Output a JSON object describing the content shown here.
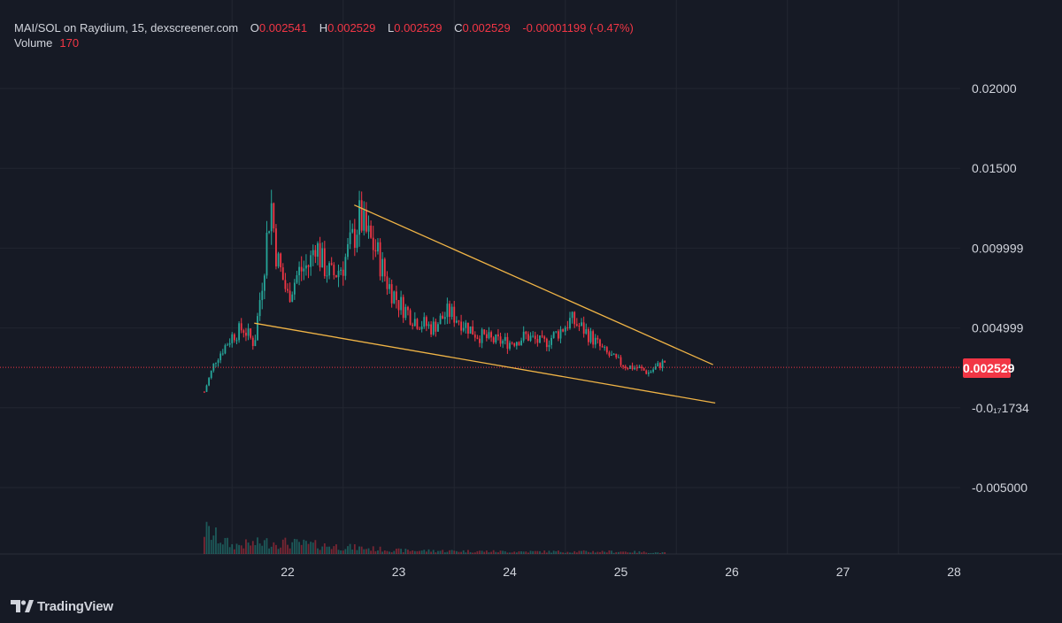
{
  "header": {
    "symbol_text": "MAI/SOL on Raydium, 15, dexscreener.com",
    "open_label": "O",
    "open": "0.002541",
    "high_label": "H",
    "high": "0.002529",
    "low_label": "L",
    "low": "0.002529",
    "close_label": "C",
    "close": "0.002529",
    "change": "-0.00001199 (-0.47%)",
    "volume_label": "Volume",
    "volume": "170"
  },
  "current_price": "0.002529",
  "brand": {
    "name": "TradingView"
  },
  "colors": {
    "background": "#161a25",
    "up": "#26a69a",
    "down": "#f23645",
    "trendline": "#f0b446",
    "grid": "#222631"
  },
  "chart_data": {
    "type": "candlestick",
    "title": "",
    "xlabel": "",
    "ylabel": "",
    "x_ticks": [
      "22",
      "23",
      "24",
      "25",
      "26",
      "27",
      "28"
    ],
    "y_ticks": [
      "0.02000",
      "0.01500",
      "0.009999",
      "0.004999",
      "-0.0₁₇1734",
      "-0.005000"
    ],
    "ylim": [
      -0.0062,
      0.0238
    ],
    "xlim": [
      21.0,
      28.1
    ],
    "grid": true,
    "current_price": 0.002529,
    "price_points": [
      [
        21.25,
        0.001
      ],
      [
        21.35,
        0.003
      ],
      [
        21.5,
        0.0045
      ],
      [
        21.6,
        0.005
      ],
      [
        21.7,
        0.004
      ],
      [
        21.78,
        0.0085
      ],
      [
        21.85,
        0.013
      ],
      [
        21.9,
        0.0095
      ],
      [
        22.0,
        0.007
      ],
      [
        22.1,
        0.0085
      ],
      [
        22.2,
        0.009
      ],
      [
        22.25,
        0.0105
      ],
      [
        22.3,
        0.0092
      ],
      [
        22.4,
        0.0082
      ],
      [
        22.5,
        0.009
      ],
      [
        22.6,
        0.0108
      ],
      [
        22.65,
        0.012
      ],
      [
        22.7,
        0.011
      ],
      [
        22.8,
        0.0098
      ],
      [
        22.9,
        0.0078
      ],
      [
        23.0,
        0.0066
      ],
      [
        23.15,
        0.0055
      ],
      [
        23.3,
        0.005
      ],
      [
        23.45,
        0.006
      ],
      [
        23.55,
        0.0055
      ],
      [
        23.7,
        0.0046
      ],
      [
        23.85,
        0.0042
      ],
      [
        24.0,
        0.0041
      ],
      [
        24.15,
        0.0045
      ],
      [
        24.3,
        0.004
      ],
      [
        24.45,
        0.0048
      ],
      [
        24.55,
        0.0055
      ],
      [
        24.65,
        0.005
      ],
      [
        24.75,
        0.0043
      ],
      [
        24.85,
        0.0035
      ],
      [
        24.95,
        0.003
      ],
      [
        25.05,
        0.0026
      ],
      [
        25.15,
        0.0025
      ],
      [
        25.25,
        0.0022
      ],
      [
        25.35,
        0.0027
      ],
      [
        25.4,
        0.0029
      ]
    ],
    "volume_points": [
      [
        21.25,
        1.0
      ],
      [
        21.5,
        0.35
      ],
      [
        21.85,
        0.5
      ],
      [
        22.5,
        0.3
      ],
      [
        23.0,
        0.15
      ],
      [
        24.0,
        0.1
      ],
      [
        25.0,
        0.1
      ],
      [
        25.4,
        0.05
      ]
    ],
    "trendlines": [
      {
        "name": "",
        "from": [
          22.6,
          0.0127
        ],
        "to": [
          25.83,
          0.0027
        ]
      },
      {
        "name": "",
        "from": [
          21.7,
          0.0053
        ],
        "to": [
          25.85,
          0.0003
        ]
      }
    ]
  }
}
